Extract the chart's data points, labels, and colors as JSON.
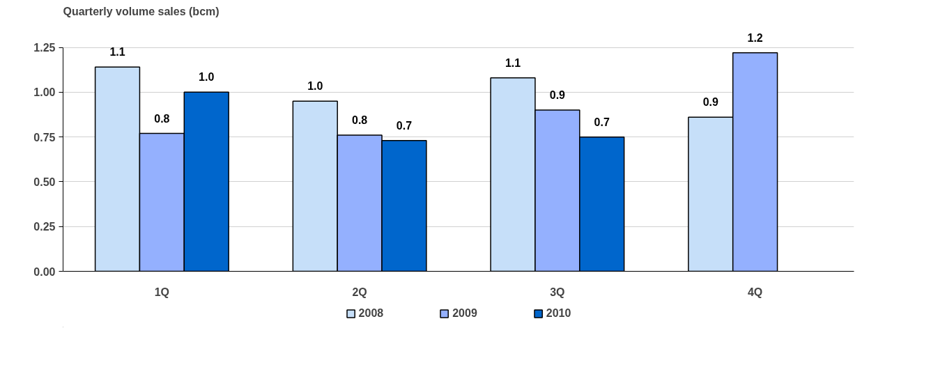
{
  "chart_data": {
    "type": "bar",
    "title": "Quarterly volume sales (bcm)",
    "categories": [
      "1Q",
      "2Q",
      "3Q",
      "4Q"
    ],
    "series": [
      {
        "name": "2008",
        "color": "#c6dff9",
        "values": [
          1.14,
          0.95,
          1.08,
          0.86
        ],
        "value_labels": [
          "1.1",
          "1.0",
          "1.1",
          "0.9"
        ]
      },
      {
        "name": "2009",
        "color": "#94b0fe",
        "values": [
          0.77,
          0.76,
          0.9,
          1.22
        ],
        "value_labels": [
          "0.8",
          "0.8",
          "0.9",
          "1.2"
        ]
      },
      {
        "name": "2010",
        "color": "#0066cc",
        "values": [
          1.0,
          0.73,
          0.75,
          null
        ],
        "value_labels": [
          "1.0",
          "0.7",
          "0.7",
          null
        ]
      }
    ],
    "ylim": [
      0,
      1.25
    ],
    "yticks": [
      {
        "value": 0,
        "label": "0.00"
      },
      {
        "value": 0.25,
        "label": "0.25"
      },
      {
        "value": 0.5,
        "label": "0.50"
      },
      {
        "value": 0.75,
        "label": "0.75"
      },
      {
        "value": 1,
        "label": "1.00"
      },
      {
        "value": 1.25,
        "label": "1.25"
      }
    ],
    "grid": "y",
    "legend": "bottom"
  }
}
